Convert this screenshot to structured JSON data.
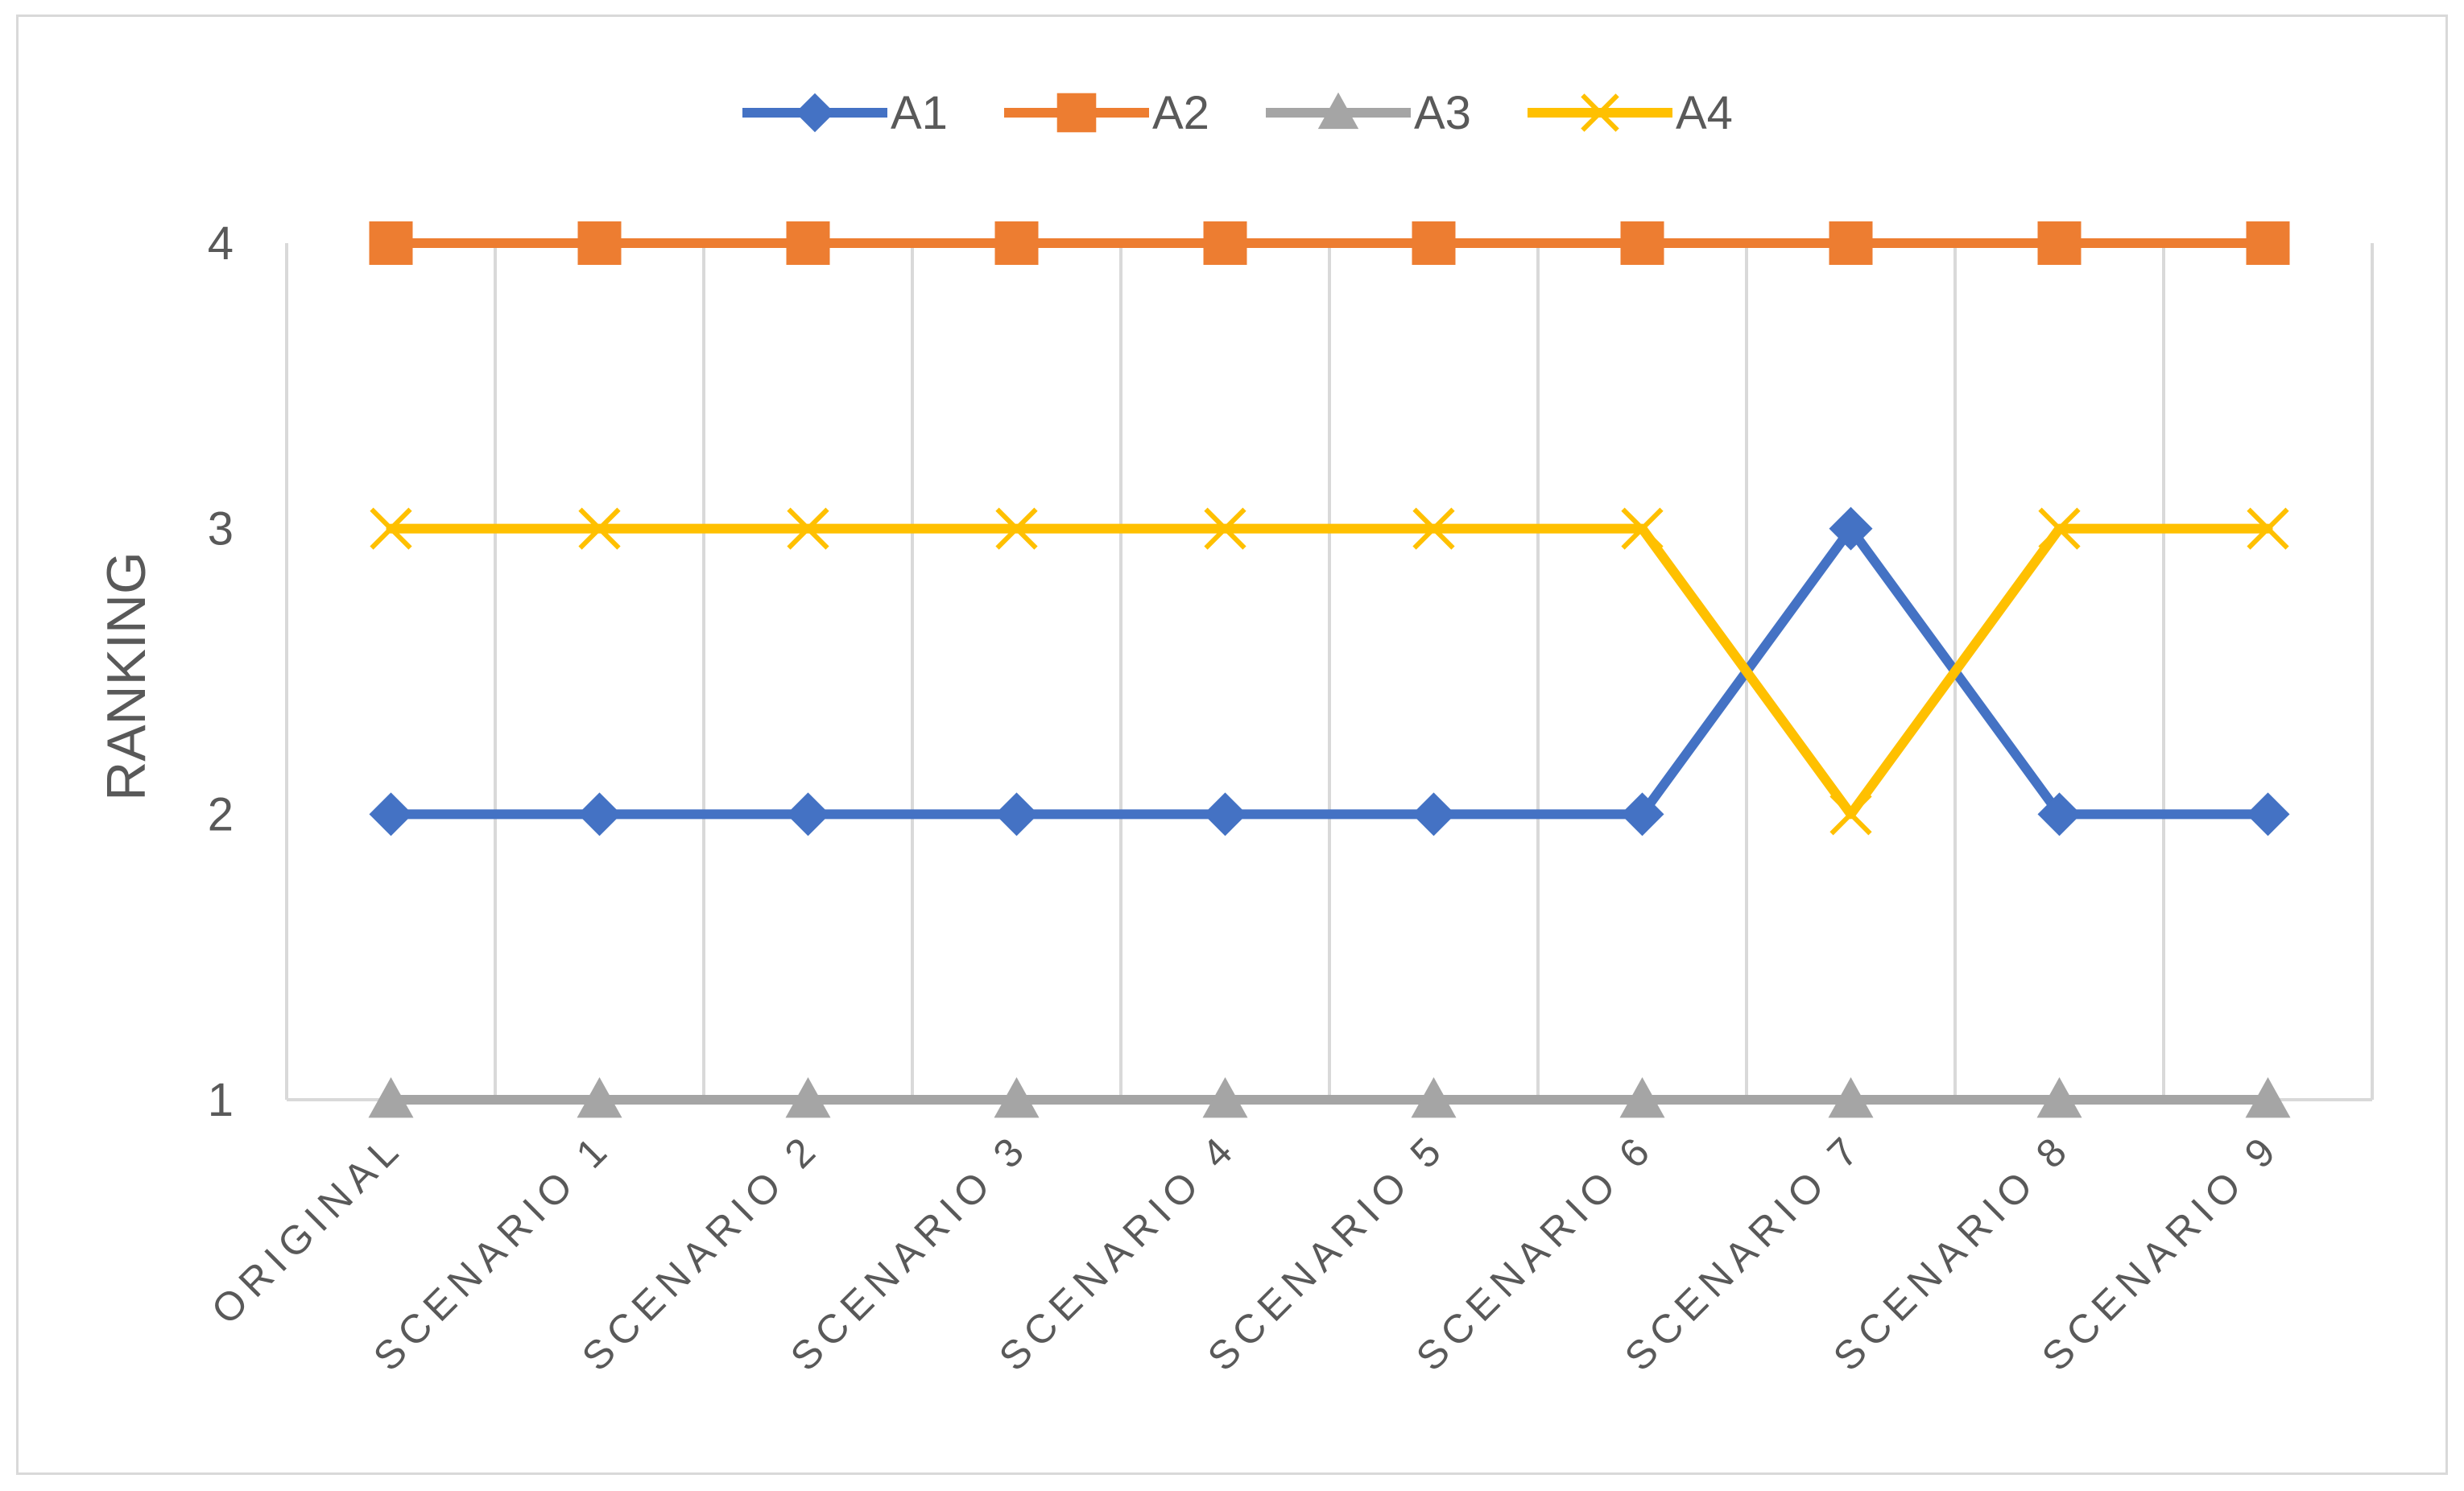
{
  "chart_data": {
    "type": "line",
    "title": "",
    "xlabel": "",
    "ylabel": "RANKING",
    "ylim": [
      1,
      4
    ],
    "yticks": [
      1,
      2,
      3,
      4
    ],
    "grid": "vertical",
    "legend_position": "top",
    "categories": [
      "ORIGINAL",
      "SCENARIO 1",
      "SCENARIO 2",
      "SCENARIO 3",
      "SCENARIO 4",
      "SCENARIO 5",
      "SCENARIO 6",
      "SCENARIO 7",
      "SCENARIO 8",
      "SCENARIO 9"
    ],
    "series": [
      {
        "name": "A1",
        "color": "#4472C4",
        "marker": "diamond",
        "values": [
          2,
          2,
          2,
          2,
          2,
          2,
          2,
          3,
          2,
          2
        ]
      },
      {
        "name": "A2",
        "color": "#ED7D31",
        "marker": "square",
        "values": [
          4,
          4,
          4,
          4,
          4,
          4,
          4,
          4,
          4,
          4
        ]
      },
      {
        "name": "A3",
        "color": "#A5A5A5",
        "marker": "triangle",
        "values": [
          1,
          1,
          1,
          1,
          1,
          1,
          1,
          1,
          1,
          1
        ]
      },
      {
        "name": "A4",
        "color": "#FFC000",
        "marker": "x",
        "values": [
          3,
          3,
          3,
          3,
          3,
          3,
          3,
          2,
          3,
          3
        ]
      }
    ]
  }
}
